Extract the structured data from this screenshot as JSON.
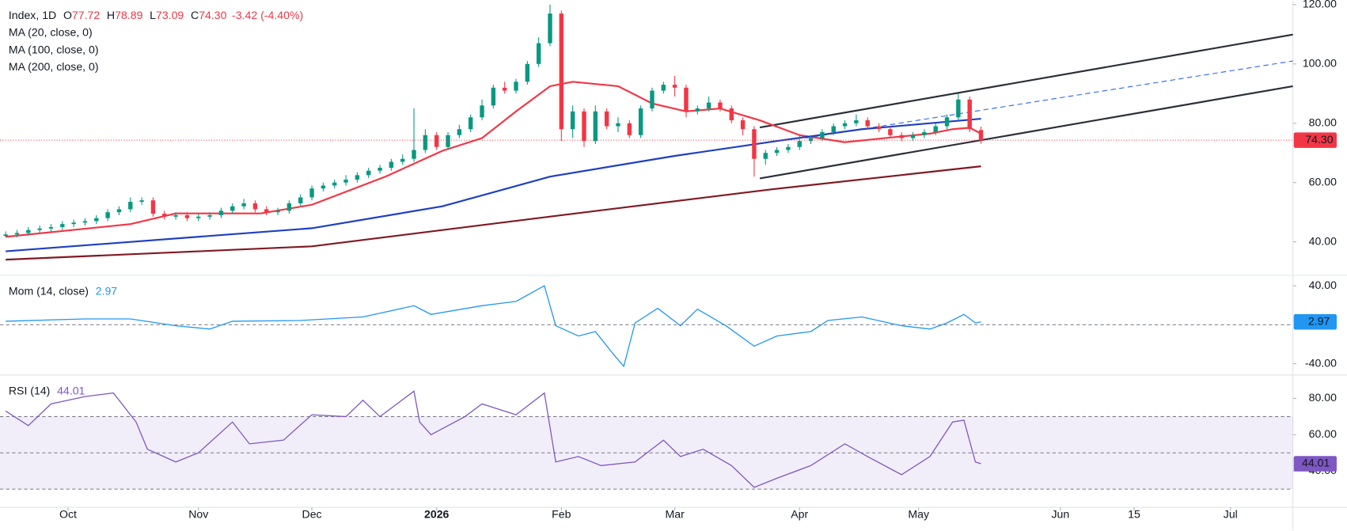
{
  "chart_data": [
    {
      "type": "candlestick",
      "title": "Index, 1D",
      "ohlc_labels": [
        {
          "key": "O",
          "value": "77.72"
        },
        {
          "key": "H",
          "value": "78.89"
        },
        {
          "key": "L",
          "value": "73.09"
        },
        {
          "key": "C",
          "value": "74.30"
        }
      ],
      "change_label": "-3.42 (-4.40%)",
      "last_label": "74.30",
      "up_color": "#089981",
      "down_color": "#f23645",
      "x": [
        0,
        2,
        4,
        6,
        8,
        10,
        12,
        14,
        16,
        18,
        20,
        22,
        24,
        26,
        28,
        30,
        32,
        34,
        36,
        38,
        40,
        42,
        44,
        46,
        48,
        50,
        52,
        54,
        56,
        58,
        60,
        62,
        64,
        66,
        68,
        70,
        72,
        74,
        76,
        78,
        80,
        82,
        84,
        86,
        88,
        90,
        92,
        94,
        96,
        98,
        100,
        102,
        104,
        106,
        108,
        110,
        112,
        114,
        116,
        118,
        120,
        122,
        124,
        126,
        128,
        130,
        132,
        134,
        136,
        138,
        140,
        142,
        144,
        146,
        148,
        150,
        152,
        154,
        156,
        158,
        160,
        162,
        164,
        166,
        168,
        170,
        172
      ],
      "open": [
        42,
        42.5,
        43,
        44,
        44.5,
        45,
        46,
        46.5,
        47,
        48,
        50,
        51,
        53.5,
        54,
        49.5,
        48.5,
        49,
        48,
        48.5,
        49,
        50.5,
        52,
        53,
        51,
        50,
        50.5,
        53,
        55,
        58,
        59,
        60,
        61,
        62.5,
        64,
        65,
        67,
        68,
        71,
        76,
        72,
        76,
        78,
        82,
        86,
        92,
        91,
        94,
        100,
        107,
        117,
        78,
        84,
        74,
        84,
        79,
        80,
        76,
        85,
        91,
        93,
        92,
        84,
        85,
        87,
        85,
        81,
        78,
        68,
        70,
        71,
        72,
        74,
        75,
        77,
        79,
        80,
        81,
        79,
        78,
        76,
        75,
        76,
        77,
        79,
        82,
        88,
        77.72
      ],
      "high": [
        43.5,
        44,
        45,
        45.5,
        46,
        47,
        47.5,
        48,
        49,
        51,
        52,
        55,
        55,
        55,
        50.5,
        50,
        50,
        49.5,
        50,
        51.5,
        53,
        54.5,
        54,
        52,
        51.5,
        54,
        56,
        59,
        60,
        61,
        62.5,
        63.5,
        65,
        66,
        68,
        69.5,
        85,
        78,
        77,
        77,
        79.5,
        83,
        88,
        93,
        94,
        95,
        101,
        109,
        120,
        118,
        86,
        85,
        86,
        85,
        82,
        81,
        86,
        92,
        94,
        96,
        93,
        86,
        89,
        88,
        86,
        82,
        79,
        71,
        72,
        73,
        76,
        76,
        78,
        80,
        81,
        83,
        82,
        80,
        79,
        77,
        77,
        78,
        80,
        83,
        90,
        89,
        78.89
      ],
      "low": [
        41.5,
        41.5,
        42,
        43,
        43.5,
        44,
        45,
        45.5,
        46,
        47,
        49,
        50,
        52.5,
        48.5,
        47.5,
        47.5,
        47,
        47,
        47.5,
        48,
        49.5,
        51,
        50,
        49,
        49,
        49.5,
        52,
        54,
        57,
        58,
        59,
        60,
        61.5,
        63,
        64,
        66,
        67,
        70,
        71,
        71,
        75,
        77,
        81,
        85,
        90,
        90,
        93,
        99,
        106,
        74,
        75,
        72,
        73,
        78,
        77,
        75,
        75,
        84,
        90,
        89,
        82,
        83,
        84,
        84,
        80,
        76,
        62,
        66,
        69,
        70,
        71,
        73,
        74,
        76,
        78,
        79,
        78,
        77,
        75,
        74,
        74,
        75,
        76,
        78,
        81,
        77,
        73.09
      ],
      "close": [
        42.5,
        43,
        44,
        44.5,
        45,
        46,
        46.5,
        47,
        48,
        50,
        51,
        53.5,
        54,
        49.5,
        48.5,
        49,
        48,
        48.5,
        49,
        50.5,
        52,
        53,
        51,
        50,
        50.5,
        53,
        55,
        58,
        59,
        60,
        61,
        62.5,
        64,
        65,
        67,
        68,
        71,
        76,
        72,
        76,
        78,
        82,
        86,
        92,
        91,
        94,
        100,
        107,
        117,
        78,
        84,
        74,
        84,
        79,
        80,
        76,
        85,
        91,
        93,
        92,
        84,
        85,
        87,
        85,
        81,
        78,
        68,
        70,
        71,
        72,
        74,
        75,
        77,
        79,
        80,
        81,
        79,
        78,
        76,
        75,
        76,
        77,
        79,
        82,
        88,
        78,
        74.3
      ],
      "series": [
        {
          "name": "MA (20, close, 0)",
          "color": "#f23645",
          "x": [
            0,
            22,
            30,
            45,
            54,
            67,
            77,
            84,
            90,
            96,
            100,
            108,
            114,
            120,
            126,
            133,
            140,
            148,
            155,
            163,
            167,
            170,
            172
          ],
          "values": [
            41.7,
            46,
            49.6,
            49.6,
            52.5,
            62,
            70.7,
            75,
            84,
            92.5,
            94,
            92.5,
            86.7,
            84,
            85,
            81,
            76,
            73.6,
            75,
            76.5,
            78,
            78.5,
            76.5
          ]
        },
        {
          "name": "MA (100, close, 0)",
          "color": "#1e3fc2",
          "x": [
            0,
            54,
            77,
            96,
            118,
            136,
            151,
            172
          ],
          "values": [
            36.8,
            44.6,
            52,
            62,
            69,
            74,
            78,
            81.5
          ]
        },
        {
          "name": "MA (200, close, 0)",
          "color": "#801922",
          "x": [
            0,
            34,
            54,
            98,
            135,
            172
          ],
          "values": [
            34,
            36.8,
            38.5,
            49,
            57.7,
            65.5
          ]
        }
      ],
      "trendlines": [
        {
          "color": "#2a2e39",
          "x": [
            133,
            227
          ],
          "values": [
            78.6,
            109.9
          ]
        },
        {
          "color": "#2a2e39",
          "x": [
            133,
            227
          ],
          "values": [
            61.4,
            92.5
          ]
        },
        {
          "color": "#2962ff",
          "dashed": true,
          "x": [
            141,
            227
          ],
          "values": [
            75,
            101
          ]
        }
      ],
      "xlim": [
        -1,
        227
      ],
      "ylim": [
        28.7,
        121.4
      ],
      "yticks": [
        {
          "value": 120,
          "label": "120.00"
        },
        {
          "value": 100,
          "label": "100.00"
        },
        {
          "value": 80,
          "label": "80.00"
        },
        {
          "value": 60,
          "label": "60.00"
        },
        {
          "value": 40,
          "label": "40.00"
        }
      ]
    },
    {
      "type": "line",
      "series": [
        {
          "name": "Mom (14, close)",
          "color": "#2196f3",
          "x": [
            0,
            14,
            22,
            30,
            36,
            40,
            52,
            63,
            72,
            75,
            84,
            90,
            95,
            97,
            101,
            104,
            107,
            109,
            111,
            115,
            119,
            122,
            127,
            132,
            136,
            142,
            145,
            151,
            158,
            163,
            166,
            169,
            171,
            172
          ],
          "values": [
            3.6,
            6,
            6,
            -1,
            -4.4,
            3.6,
            4.4,
            8,
            19.6,
            10.7,
            19.6,
            24,
            40,
            -1,
            -11.6,
            -7,
            -29,
            -42.7,
            1.8,
            16.9,
            -1,
            16,
            -1,
            -22,
            -11.6,
            -7,
            4.4,
            8,
            -1,
            -4.4,
            1.8,
            10.7,
            1.8,
            2.97
          ]
        }
      ],
      "hlines": [
        0
      ],
      "xlim": [
        -1,
        227
      ],
      "ylim": [
        -51.6,
        50.7
      ],
      "yticks": [
        {
          "value": 40,
          "label": "40.00"
        },
        {
          "value": -40,
          "label": "-40.00"
        }
      ]
    },
    {
      "type": "line",
      "series": [
        {
          "name": "RSI (14)",
          "color": "#7e57c2",
          "x": [
            0,
            4,
            8,
            14,
            19,
            23,
            25,
            30,
            34,
            40,
            43,
            49,
            54,
            60,
            63,
            66,
            72,
            73,
            75,
            81,
            84,
            90,
            95,
            97,
            101,
            105,
            111,
            116,
            119,
            123,
            128,
            132,
            136,
            142,
            148,
            152,
            158,
            163,
            167,
            169,
            171,
            172
          ],
          "values": [
            73,
            65,
            77,
            81,
            83,
            67,
            52,
            45,
            50,
            67,
            55,
            57,
            71,
            70,
            79,
            70,
            84,
            67,
            60,
            70,
            77,
            71,
            83,
            45,
            48,
            43,
            45,
            57,
            48,
            52,
            43,
            31,
            36,
            43,
            55,
            48,
            38,
            48,
            67,
            68,
            45,
            44.01
          ]
        }
      ],
      "band": [
        30,
        70
      ],
      "hlines": [
        70,
        50,
        30
      ],
      "xlim": [
        -1,
        227
      ],
      "ylim": [
        20,
        92.9
      ],
      "yticks": [
        {
          "value": 80,
          "label": "80.00"
        },
        {
          "value": 60,
          "label": "60.00"
        },
        {
          "value": 40,
          "label": "40.00"
        }
      ],
      "xticks": [
        {
          "value": 11,
          "label": "Oct"
        },
        {
          "value": 34,
          "label": "Nov"
        },
        {
          "value": 54,
          "label": "Dec"
        },
        {
          "value": 76,
          "label": "2026",
          "bold": true
        },
        {
          "value": 98,
          "label": "Feb"
        },
        {
          "value": 118,
          "label": "Mar"
        },
        {
          "value": 140,
          "label": "Apr"
        },
        {
          "value": 161,
          "label": "May"
        },
        {
          "value": 186,
          "label": "Jun"
        },
        {
          "value": 199,
          "label": "15"
        },
        {
          "value": 216,
          "label": "Jul"
        }
      ]
    }
  ]
}
